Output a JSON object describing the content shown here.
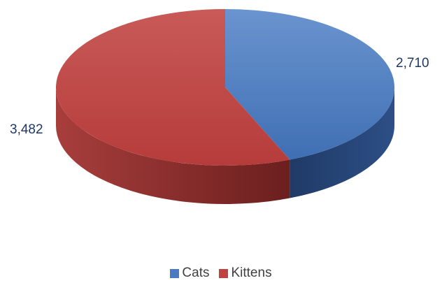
{
  "chart_data": {
    "type": "pie",
    "style": "3d-pie",
    "categories": [
      "Cats",
      "Kittens"
    ],
    "values": [
      2710,
      3482
    ],
    "value_labels": [
      "2,710",
      "3,482"
    ],
    "colors": [
      "#4a7bc0",
      "#bf4341"
    ],
    "legend_position": "bottom"
  }
}
